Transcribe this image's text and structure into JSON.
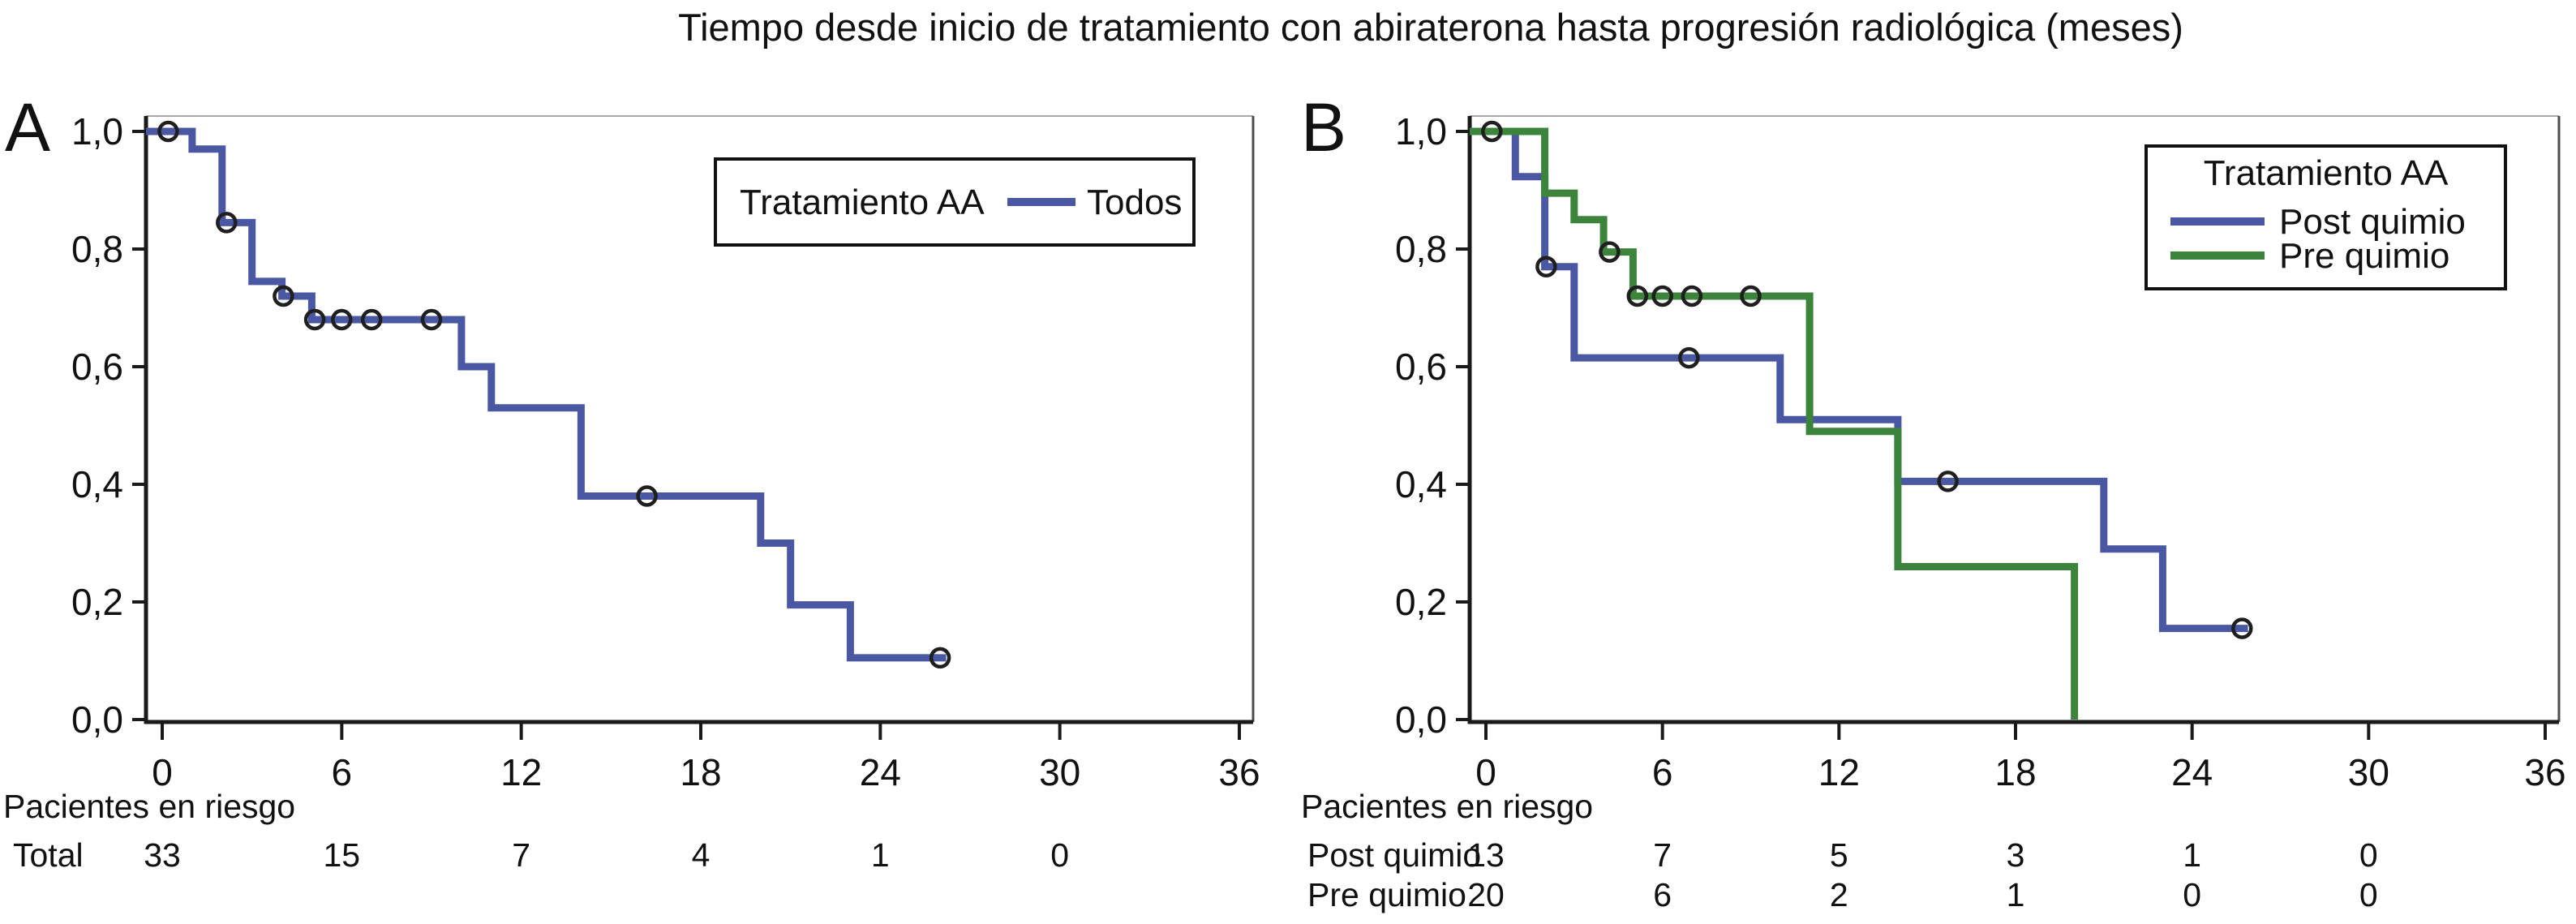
{
  "title": "Tiempo desde inicio de tratamiento con abiraterona hasta progresión radiológica (meses)",
  "risk_header": "Pacientes en riesgo",
  "colors": {
    "post_quimio_blue": "#4a57a2",
    "pre_quimio_green": "#3c833c",
    "censor_ring": "#1f1f1f",
    "axis": "#1a1a1a",
    "frame_top": "#a8a8a8",
    "frame_right": "#4d4d4d"
  },
  "chart_data": [
    {
      "type": "line",
      "subtype": "kaplan-meier-step",
      "panel": "A",
      "xlim": [
        0,
        36
      ],
      "xticks": [
        "0",
        "6",
        "12",
        "18",
        "24",
        "30",
        "36"
      ],
      "xtick_values": [
        0,
        6,
        12,
        18,
        24,
        30,
        36
      ],
      "ylim": [
        0,
        1
      ],
      "yticks": [
        {
          "v": 0.0,
          "label": "0,0"
        },
        {
          "v": 0.2,
          "label": "0,2"
        },
        {
          "v": 0.4,
          "label": "0,4"
        },
        {
          "v": 0.6,
          "label": "0,6"
        },
        {
          "v": 0.8,
          "label": "0,8"
        },
        {
          "v": 1.0,
          "label": "1,0"
        }
      ],
      "legend": {
        "title": "Tratamiento AA",
        "layout": "inline",
        "entries": [
          {
            "label": "Todos",
            "color": "post_quimio_blue"
          }
        ]
      },
      "series": [
        {
          "name": "Todos",
          "color": "post_quimio_blue",
          "steps": [
            [
              0,
              1.0
            ],
            [
              1,
              0.97
            ],
            [
              2,
              0.845
            ],
            [
              3,
              0.745
            ],
            [
              4,
              0.72
            ],
            [
              5,
              0.68
            ],
            [
              10,
              0.6
            ],
            [
              11,
              0.53
            ],
            [
              14,
              0.38
            ],
            [
              20,
              0.3
            ],
            [
              21,
              0.195
            ],
            [
              23,
              0.105
            ],
            [
              26.2,
              0.105
            ]
          ],
          "censors": [
            [
              0.2,
              1.0
            ],
            [
              2.15,
              0.845
            ],
            [
              4.05,
              0.72
            ],
            [
              5.1,
              0.68
            ],
            [
              6,
              0.68
            ],
            [
              7,
              0.68
            ],
            [
              9,
              0.68
            ],
            [
              16.2,
              0.38
            ],
            [
              26,
              0.105
            ]
          ]
        }
      ],
      "risk_table": {
        "times": [
          0,
          6,
          12,
          18,
          24,
          30
        ],
        "rows": [
          {
            "label": "Total",
            "counts": [
              "33",
              "15",
              "7",
              "4",
              "1",
              "0"
            ]
          }
        ]
      }
    },
    {
      "type": "line",
      "subtype": "kaplan-meier-step",
      "panel": "B",
      "xlim": [
        0,
        36
      ],
      "xticks": [
        "0",
        "6",
        "12",
        "18",
        "24",
        "30",
        "36"
      ],
      "xtick_values": [
        0,
        6,
        12,
        18,
        24,
        30,
        36
      ],
      "ylim": [
        0,
        1
      ],
      "yticks": [
        {
          "v": 0.0,
          "label": "0,0"
        },
        {
          "v": 0.2,
          "label": "0,2"
        },
        {
          "v": 0.4,
          "label": "0,4"
        },
        {
          "v": 0.6,
          "label": "0,6"
        },
        {
          "v": 0.8,
          "label": "0,8"
        },
        {
          "v": 1.0,
          "label": "1,0"
        }
      ],
      "legend": {
        "title": "Tratamiento AA",
        "layout": "stacked",
        "entries": [
          {
            "label": "Post quimio",
            "color": "post_quimio_blue"
          },
          {
            "label": "Pre quimio",
            "color": "pre_quimio_green"
          }
        ]
      },
      "series": [
        {
          "name": "Post quimio",
          "color": "post_quimio_blue",
          "steps": [
            [
              0,
              1.0
            ],
            [
              1,
              0.923
            ],
            [
              2,
              0.77
            ],
            [
              3,
              0.615
            ],
            [
              10,
              0.51
            ],
            [
              14,
              0.405
            ],
            [
              21,
              0.29
            ],
            [
              23,
              0.155
            ],
            [
              25.9,
              0.155
            ]
          ],
          "censors": [
            [
              2.05,
              0.77
            ],
            [
              6.9,
              0.615
            ],
            [
              15.7,
              0.405
            ],
            [
              25.7,
              0.155
            ]
          ]
        },
        {
          "name": "Pre quimio",
          "color": "pre_quimio_green",
          "steps": [
            [
              0,
              1.0
            ],
            [
              2,
              0.895
            ],
            [
              3,
              0.85
            ],
            [
              4,
              0.795
            ],
            [
              5,
              0.72
            ],
            [
              11,
              0.49
            ],
            [
              14,
              0.26
            ],
            [
              20,
              0.0
            ]
          ],
          "censors": [
            [
              0.2,
              1.0
            ],
            [
              4.2,
              0.795
            ],
            [
              5.15,
              0.72
            ],
            [
              6,
              0.72
            ],
            [
              7,
              0.72
            ],
            [
              9,
              0.72
            ]
          ]
        }
      ],
      "risk_table": {
        "times": [
          0,
          6,
          12,
          18,
          24,
          30
        ],
        "rows": [
          {
            "label": "Post quimio",
            "counts": [
              "13",
              "7",
              "5",
              "3",
              "1",
              "0"
            ]
          },
          {
            "label": "Pre quimio",
            "counts": [
              "20",
              "6",
              "2",
              "1",
              "0",
              "0"
            ]
          }
        ]
      }
    }
  ]
}
